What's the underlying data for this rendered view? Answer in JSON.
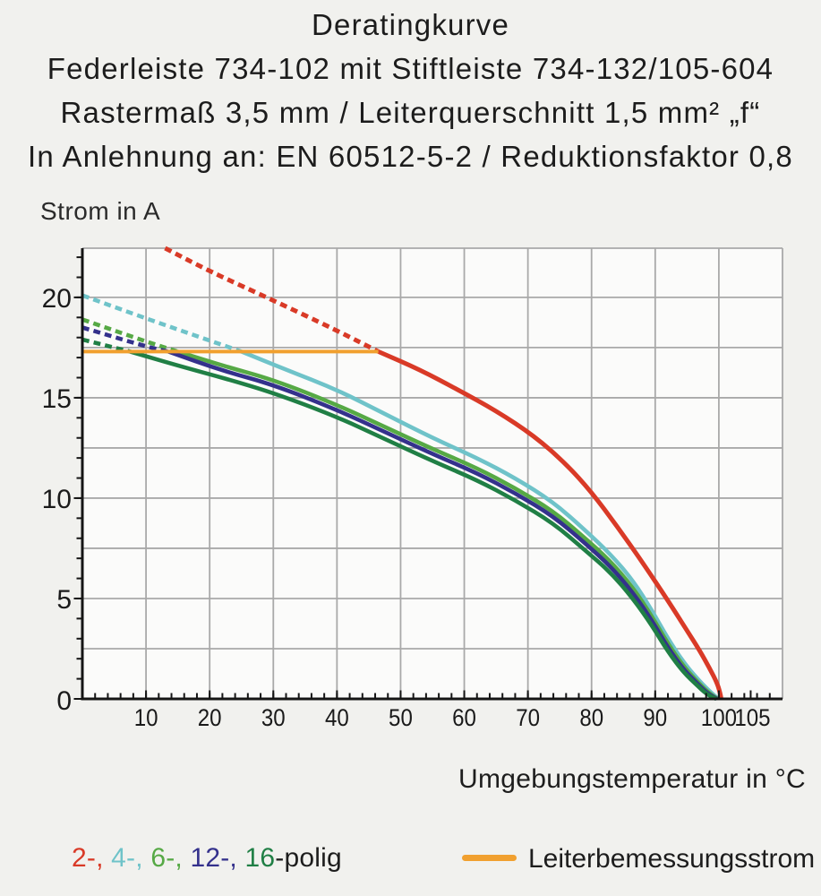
{
  "page": {
    "background": "#f1f1ee"
  },
  "titles": [
    "Deratingkurve",
    "Federleiste 734-102 mit Stiftleiste 734-132/105-604",
    "Rastermaß 3,5 mm / Leiterquerschnitt 1,5 mm² „f“",
    "In Anlehnung an: EN 60512-5-2 / Reduktionsfaktor 0,8"
  ],
  "axis_labels": {
    "y": "Strom in A",
    "x": "Umgebungstemperatur in °C"
  },
  "chart_data": {
    "type": "line",
    "x_axis": {
      "label": "Umgebungstemperatur in °C",
      "range": [
        0,
        110
      ],
      "major_ticks": [
        10,
        20,
        30,
        40,
        50,
        60,
        70,
        80,
        90,
        100,
        105
      ],
      "minor_tick_step": 2,
      "gridline_step": 10,
      "gridline_max": 100
    },
    "y_axis": {
      "label": "Strom in A",
      "range": [
        0,
        22.45
      ],
      "major_ticks": [
        0,
        5,
        10,
        15,
        20
      ],
      "minor_tick_step": 1,
      "gridline_step": 2.5
    },
    "grid_color": "#a9a9a9",
    "axis_color": "#151515",
    "plot_bg": "#fbfbfa",
    "rated_line": {
      "label": "Leiterbemessungsstrom",
      "value": 17.3,
      "x_start": 0,
      "x_end": 46.5,
      "color": "#F1A02F"
    },
    "series": [
      {
        "name": "2-polig",
        "color": "#D93A27",
        "width": 5,
        "dash_until": 46.5,
        "points": [
          [
            13,
            22.45
          ],
          [
            20,
            21.3
          ],
          [
            30,
            19.85
          ],
          [
            40,
            18.35
          ],
          [
            46.5,
            17.3
          ],
          [
            53,
            16.4
          ],
          [
            59,
            15.4
          ],
          [
            65,
            14.35
          ],
          [
            71,
            13.1
          ],
          [
            76,
            11.7
          ],
          [
            80,
            10.3
          ],
          [
            84,
            8.6
          ],
          [
            88,
            6.8
          ],
          [
            92,
            4.9
          ],
          [
            95,
            3.4
          ],
          [
            97,
            2.4
          ],
          [
            98.5,
            1.55
          ],
          [
            99.8,
            0.75
          ],
          [
            100.3,
            0.15
          ],
          [
            100.35,
            0
          ]
        ]
      },
      {
        "name": "4-polig",
        "color": "#6FC3C9",
        "width": 4.6,
        "dash_until": 25,
        "points": [
          [
            0,
            20.1
          ],
          [
            10,
            18.95
          ],
          [
            20,
            17.85
          ],
          [
            25,
            17.3
          ],
          [
            32,
            16.4
          ],
          [
            40,
            15.4
          ],
          [
            47.5,
            14.2
          ],
          [
            55,
            13.0
          ],
          [
            62,
            12.0
          ],
          [
            68,
            11.0
          ],
          [
            74,
            9.8
          ],
          [
            79,
            8.4
          ],
          [
            83,
            7.2
          ],
          [
            86.5,
            5.9
          ],
          [
            89.5,
            4.4
          ],
          [
            92,
            3.0
          ],
          [
            94.5,
            1.8
          ],
          [
            96.5,
            1.05
          ],
          [
            98.3,
            0.45
          ],
          [
            99.9,
            0
          ]
        ]
      },
      {
        "name": "6-polig",
        "color": "#56A945",
        "width": 4.6,
        "dash_until": 15,
        "points": [
          [
            0,
            18.9
          ],
          [
            10,
            17.8
          ],
          [
            15,
            17.3
          ],
          [
            22,
            16.6
          ],
          [
            30,
            15.9
          ],
          [
            40,
            14.65
          ],
          [
            47.5,
            13.55
          ],
          [
            55,
            12.45
          ],
          [
            62,
            11.5
          ],
          [
            68,
            10.5
          ],
          [
            74,
            9.35
          ],
          [
            79,
            8.0
          ],
          [
            83,
            6.85
          ],
          [
            86.5,
            5.55
          ],
          [
            89.5,
            4.1
          ],
          [
            92,
            2.75
          ],
          [
            94.5,
            1.6
          ],
          [
            96.5,
            0.9
          ],
          [
            98.2,
            0.35
          ],
          [
            99.75,
            0
          ]
        ]
      },
      {
        "name": "12-polig",
        "color": "#34318C",
        "width": 4.6,
        "dash_until": 13.5,
        "points": [
          [
            0,
            18.5
          ],
          [
            10,
            17.55
          ],
          [
            13.5,
            17.3
          ],
          [
            22,
            16.35
          ],
          [
            30,
            15.65
          ],
          [
            40,
            14.4
          ],
          [
            47.5,
            13.3
          ],
          [
            55,
            12.2
          ],
          [
            62,
            11.25
          ],
          [
            68,
            10.25
          ],
          [
            74,
            9.1
          ],
          [
            79,
            7.75
          ],
          [
            83,
            6.6
          ],
          [
            86.5,
            5.3
          ],
          [
            89.5,
            3.9
          ],
          [
            92,
            2.55
          ],
          [
            94.5,
            1.45
          ],
          [
            96.5,
            0.8
          ],
          [
            98.1,
            0.3
          ],
          [
            99.65,
            0
          ]
        ]
      },
      {
        "name": "16-polig",
        "color": "#207F45",
        "width": 4.6,
        "dash_until": 7.5,
        "points": [
          [
            0,
            17.9
          ],
          [
            7.5,
            17.3
          ],
          [
            15,
            16.6
          ],
          [
            22,
            16.0
          ],
          [
            30,
            15.25
          ],
          [
            40,
            14.05
          ],
          [
            47.5,
            12.95
          ],
          [
            55,
            11.85
          ],
          [
            62,
            10.9
          ],
          [
            68,
            9.9
          ],
          [
            74,
            8.75
          ],
          [
            79,
            7.4
          ],
          [
            83,
            6.3
          ],
          [
            86.5,
            5.0
          ],
          [
            89.5,
            3.65
          ],
          [
            92,
            2.35
          ],
          [
            94.5,
            1.3
          ],
          [
            96.5,
            0.7
          ],
          [
            98,
            0.25
          ],
          [
            99.55,
            0
          ]
        ]
      }
    ]
  },
  "legend": {
    "pole_parts": [
      {
        "text": "2-, ",
        "color": "#D93A27"
      },
      {
        "text": "4-, ",
        "color": "#6FC3C9"
      },
      {
        "text": "6-, ",
        "color": "#56A945"
      },
      {
        "text": "12-, ",
        "color": "#34318C"
      },
      {
        "text": "16",
        "color": "#207F45"
      },
      {
        "text": "-polig",
        "color": "#1d1d1d"
      }
    ],
    "rated_label": "Leiterbemessungsstrom"
  }
}
